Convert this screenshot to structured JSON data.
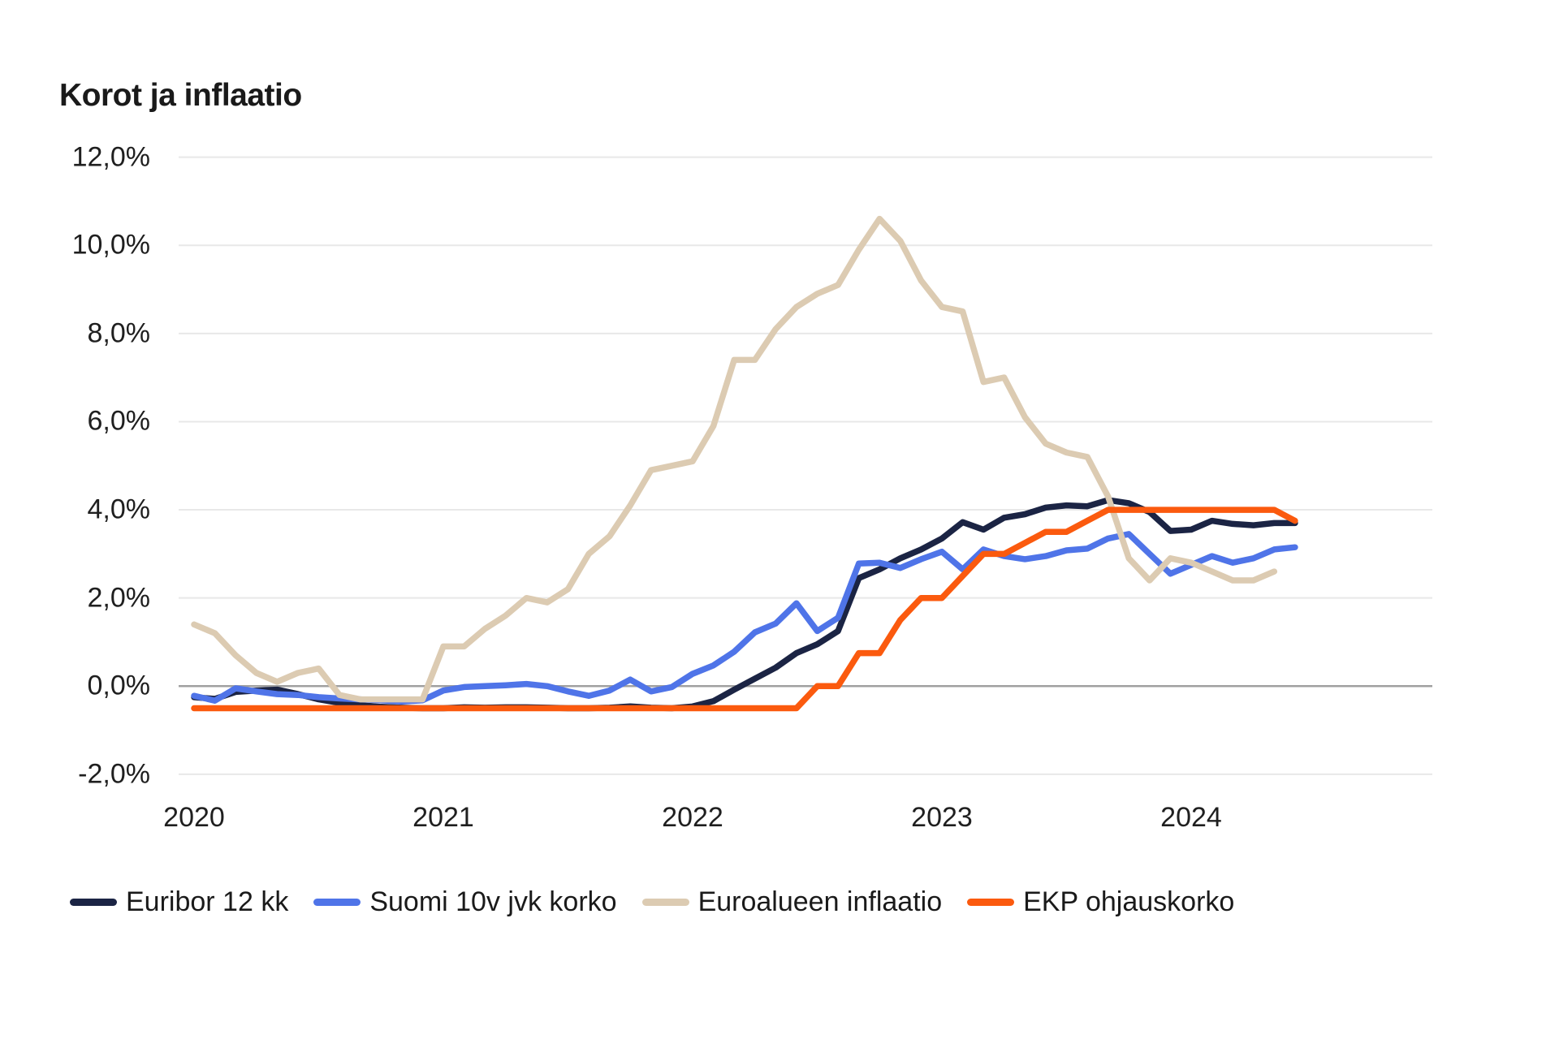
{
  "title": "Korot ja inflaatio",
  "colors": {
    "background": "#ffffff",
    "grid_line": "#e8e8e8",
    "zero_line": "#a0a0a0",
    "text": "#1f1f1f",
    "title_text": "#1a1a1a"
  },
  "chart_data": {
    "type": "line",
    "title": "Korot ja inflaatio",
    "xlabel": "",
    "ylabel": "",
    "grid": "horizontal",
    "legend_position": "bottom",
    "x_unit": "month",
    "x_start": "2020-01",
    "x_end": "2024-06",
    "ylim": [
      -2.0,
      12.0
    ],
    "y_ticks": [
      {
        "value": 12,
        "label": "12,0%"
      },
      {
        "value": 10,
        "label": "10,0%"
      },
      {
        "value": 8,
        "label": "8,0%"
      },
      {
        "value": 6,
        "label": "6,0%"
      },
      {
        "value": 4,
        "label": "4,0%"
      },
      {
        "value": 2,
        "label": "2,0%"
      },
      {
        "value": 0,
        "label": "0,0%"
      },
      {
        "value": -2,
        "label": "-2,0%"
      }
    ],
    "x_ticks": [
      {
        "label": "2020",
        "month_index": 0
      },
      {
        "label": "2021",
        "month_index": 12
      },
      {
        "label": "2022",
        "month_index": 24
      },
      {
        "label": "2023",
        "month_index": 36
      },
      {
        "label": "2024",
        "month_index": 48
      }
    ],
    "series": [
      {
        "name": "Euribor 12 kk",
        "color": "#1b2444",
        "values": [
          -0.25,
          -0.29,
          -0.13,
          -0.1,
          -0.08,
          -0.18,
          -0.3,
          -0.38,
          -0.43,
          -0.47,
          -0.49,
          -0.5,
          -0.5,
          -0.48,
          -0.49,
          -0.48,
          -0.48,
          -0.49,
          -0.5,
          -0.5,
          -0.49,
          -0.46,
          -0.49,
          -0.5,
          -0.46,
          -0.34,
          -0.08,
          0.17,
          0.42,
          0.75,
          0.95,
          1.25,
          2.45,
          2.65,
          2.9,
          3.1,
          3.35,
          3.72,
          3.55,
          3.82,
          3.9,
          4.05,
          4.1,
          4.08,
          4.22,
          4.15,
          3.95,
          3.52,
          3.55,
          3.75,
          3.68,
          3.65,
          3.7,
          3.7
        ]
      },
      {
        "name": "Suomi 10v jvk korko",
        "color": "#4f74e8",
        "values": [
          -0.22,
          -0.33,
          -0.05,
          -0.12,
          -0.18,
          -0.2,
          -0.25,
          -0.28,
          -0.3,
          -0.32,
          -0.35,
          -0.32,
          -0.1,
          -0.02,
          0.0,
          0.02,
          0.05,
          0.0,
          -0.12,
          -0.22,
          -0.1,
          0.15,
          -0.12,
          -0.02,
          0.28,
          0.47,
          0.78,
          1.22,
          1.42,
          1.88,
          1.25,
          1.55,
          2.78,
          2.8,
          2.68,
          2.88,
          3.05,
          2.65,
          3.1,
          2.95,
          2.88,
          2.95,
          3.08,
          3.12,
          3.35,
          3.45,
          3.0,
          2.55,
          2.75,
          2.95,
          2.8,
          2.9,
          3.1,
          3.15
        ]
      },
      {
        "name": "Euroalueen inflaatio",
        "color": "#dccbb2",
        "values": [
          1.4,
          1.2,
          0.7,
          0.3,
          0.1,
          0.3,
          0.4,
          -0.2,
          -0.3,
          -0.3,
          -0.3,
          -0.3,
          0.9,
          0.9,
          1.3,
          1.6,
          2.0,
          1.9,
          2.2,
          3.0,
          3.4,
          4.1,
          4.9,
          5.0,
          5.1,
          5.9,
          7.4,
          7.4,
          8.1,
          8.6,
          8.9,
          9.1,
          9.9,
          10.6,
          10.1,
          9.2,
          8.6,
          8.5,
          6.9,
          7.0,
          6.1,
          5.5,
          5.3,
          5.2,
          4.3,
          2.9,
          2.4,
          2.9,
          2.8,
          2.6,
          2.4,
          2.4,
          2.6
        ]
      },
      {
        "name": "EKP ohjauskorko",
        "color": "#fb5a0e",
        "values": [
          -0.5,
          -0.5,
          -0.5,
          -0.5,
          -0.5,
          -0.5,
          -0.5,
          -0.5,
          -0.5,
          -0.5,
          -0.5,
          -0.5,
          -0.5,
          -0.5,
          -0.5,
          -0.5,
          -0.5,
          -0.5,
          -0.5,
          -0.5,
          -0.5,
          -0.5,
          -0.5,
          -0.5,
          -0.5,
          -0.5,
          -0.5,
          -0.5,
          -0.5,
          -0.5,
          0.0,
          0.0,
          0.75,
          0.75,
          1.5,
          2.0,
          2.0,
          2.5,
          3.0,
          3.0,
          3.25,
          3.5,
          3.5,
          3.75,
          4.0,
          4.0,
          4.0,
          4.0,
          4.0,
          4.0,
          4.0,
          4.0,
          4.0,
          3.75
        ]
      }
    ]
  }
}
